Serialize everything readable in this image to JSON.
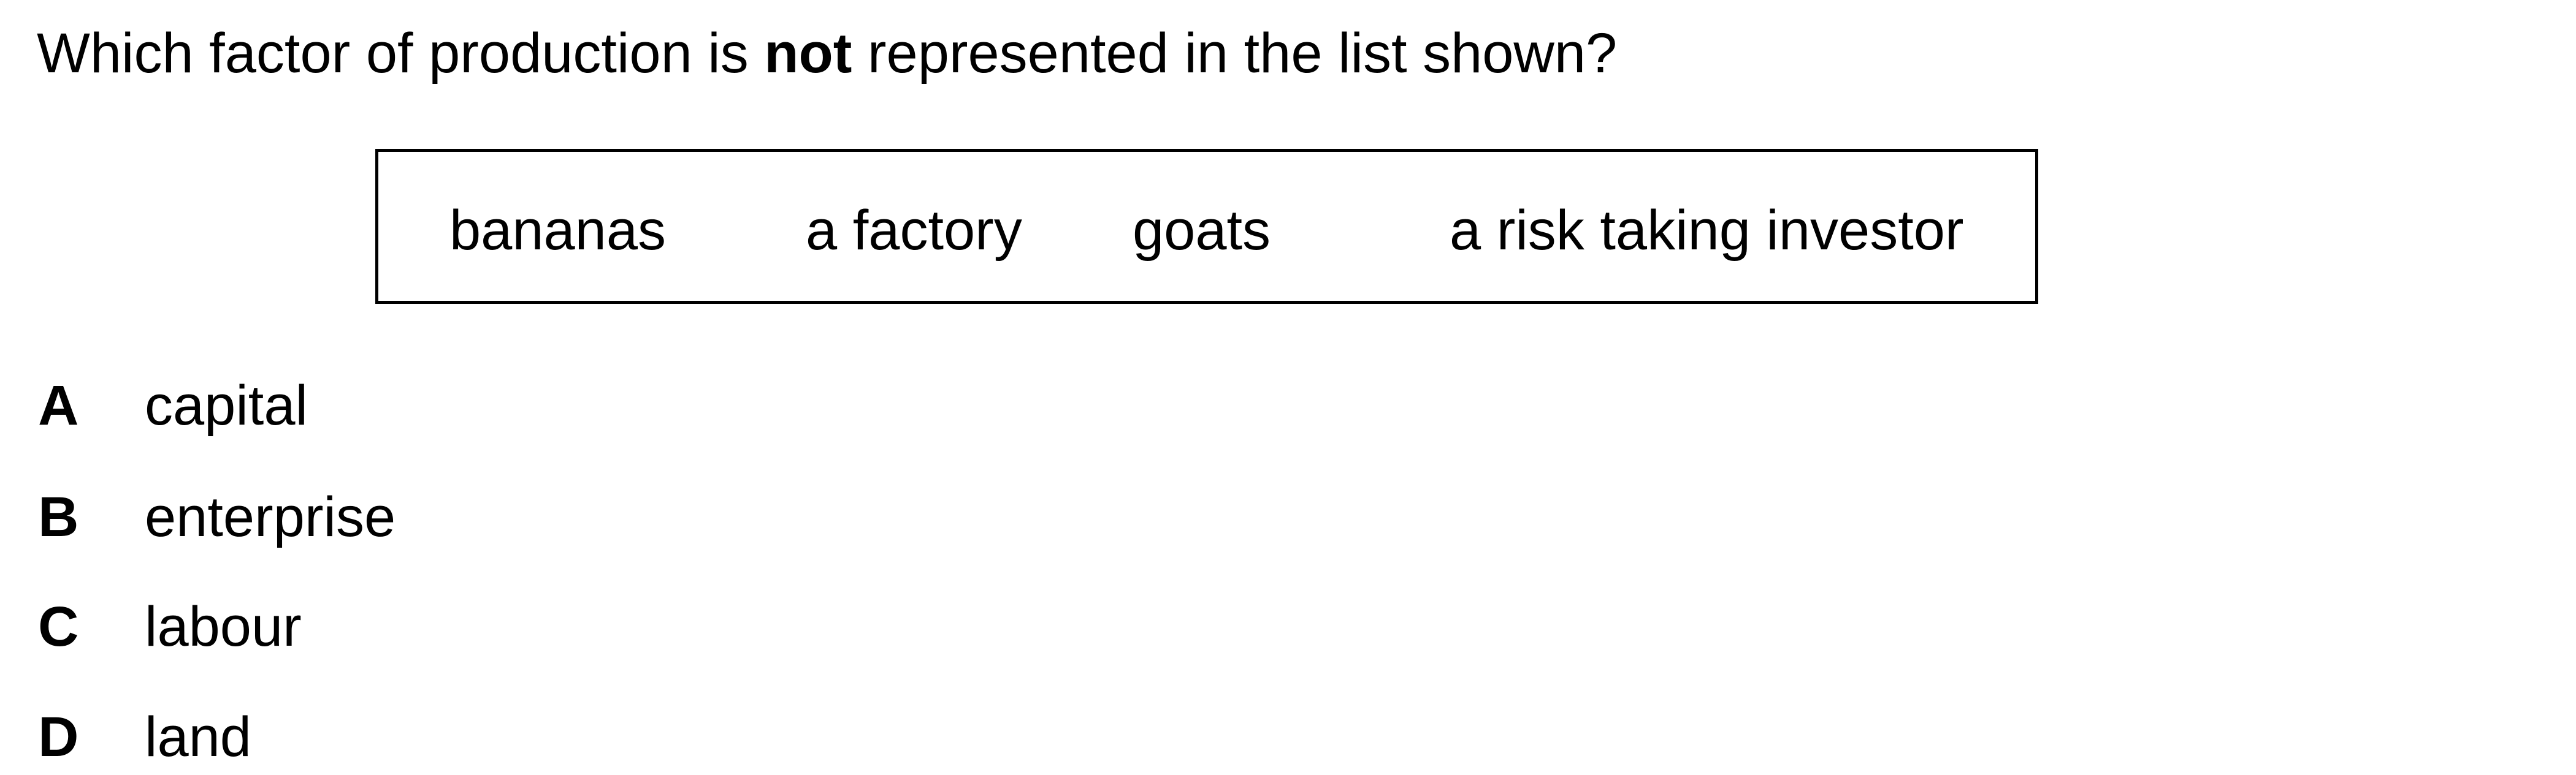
{
  "question": {
    "before": "Which factor of production is ",
    "emphasis": "not",
    "after": " represented in the list shown?"
  },
  "list_items": [
    "bananas",
    "a factory",
    "goats",
    "a risk taking investor"
  ],
  "options": [
    {
      "letter": "A",
      "text": "capital"
    },
    {
      "letter": "B",
      "text": "enterprise"
    },
    {
      "letter": "C",
      "text": "labour"
    },
    {
      "letter": "D",
      "text": "land"
    }
  ]
}
